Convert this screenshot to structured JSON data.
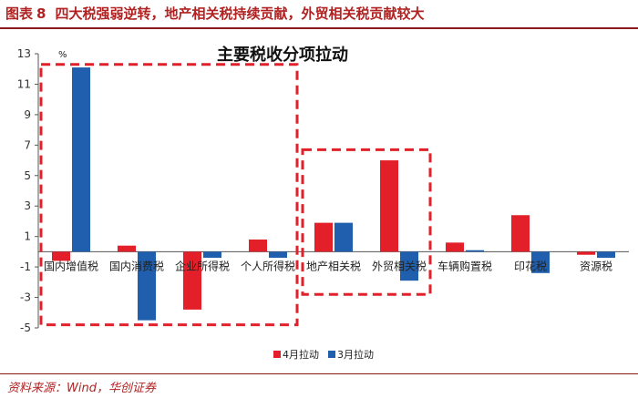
{
  "header": {
    "label": "图表",
    "number": "8",
    "text": "四大税强弱逆转，地产相关税持续贡献，外贸相关税贡献较大"
  },
  "source": "资料来源：Wind，华创证券",
  "colors": {
    "april": "#e3202a",
    "march": "#1f5fae",
    "highlight": "#e3202a",
    "header": "#b22222"
  },
  "chart_data": {
    "type": "bar",
    "title": "主要税收分项拉动",
    "unit_label": "%",
    "categories": [
      "国内增值税",
      "国内消费税",
      "企业所得税",
      "个人所得税",
      "地产相关税",
      "外贸相关税",
      "车辆购置税",
      "印花税",
      "资源税"
    ],
    "series": [
      {
        "name": "4月拉动",
        "color": "#e3202a",
        "values": [
          -0.6,
          0.4,
          -3.8,
          0.8,
          1.9,
          6.0,
          0.6,
          2.4,
          -0.2
        ]
      },
      {
        "name": "3月拉动",
        "color": "#1f5fae",
        "values": [
          12.1,
          -4.5,
          -0.4,
          -0.4,
          1.9,
          -1.9,
          0.1,
          -1.4,
          -0.4
        ]
      }
    ],
    "yticks": [
      13,
      11,
      9,
      7,
      5,
      3,
      1,
      -1,
      -3,
      -5
    ],
    "ylim": [
      -5,
      13
    ],
    "legend_position": "bottom",
    "grid": false,
    "highlight_groups": [
      [
        0,
        3
      ],
      [
        4,
        5
      ]
    ]
  }
}
